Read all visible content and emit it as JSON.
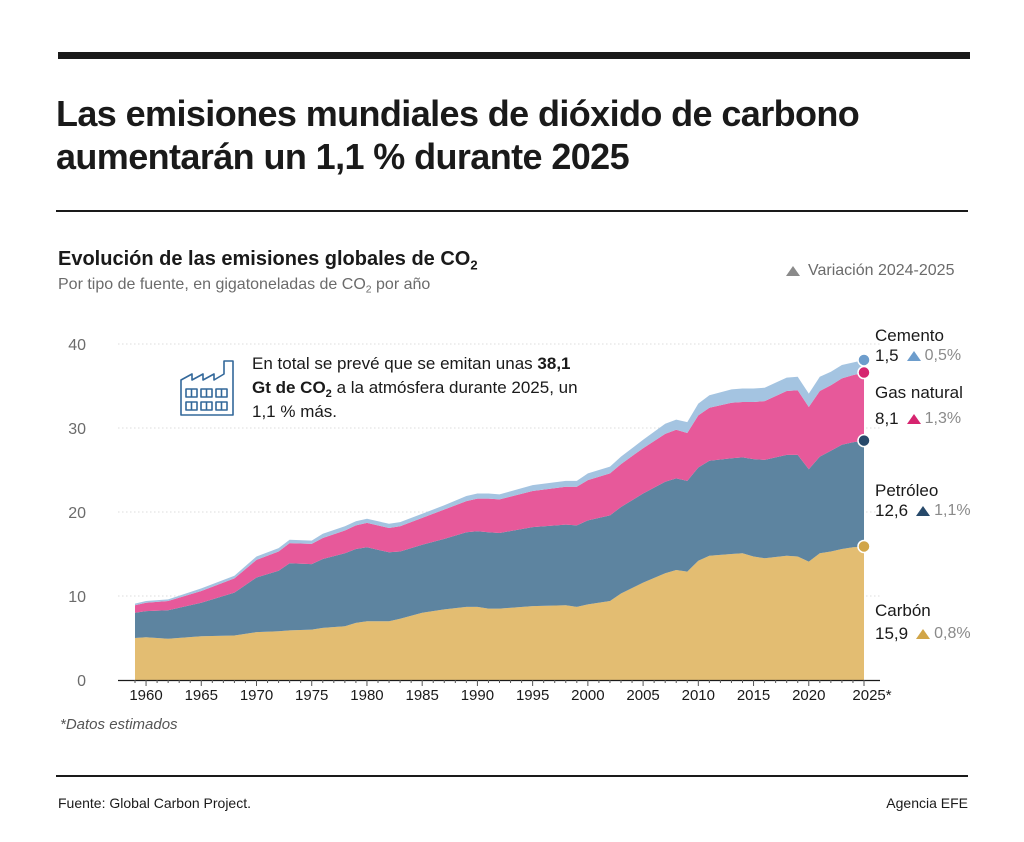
{
  "header": {
    "headline": "Las emisiones mundiales de dióxido de carbono aumentarán un 1,1 % durante 2025"
  },
  "chart_data": {
    "type": "area",
    "title": "Evolución de las emisiones globales de CO2",
    "subtitle": "Por tipo de fuente, en gigatoneladas de CO2 por año",
    "legend": "Variación 2024-2025",
    "legend_position": "top-right",
    "xlabel": "",
    "ylabel": "",
    "ylim": [
      0,
      40
    ],
    "xlim": [
      1959,
      2025
    ],
    "y_ticks": [
      "0",
      "10",
      "20",
      "30",
      "40"
    ],
    "x_ticks": [
      "1960",
      "1965",
      "1970",
      "1975",
      "1980",
      "1985",
      "1990",
      "1995",
      "2000",
      "2005",
      "2010",
      "2015",
      "2020",
      "2025*"
    ],
    "x_tick_values": [
      1960,
      1965,
      1970,
      1975,
      1980,
      1985,
      1990,
      1995,
      2000,
      2005,
      2010,
      2015,
      2020,
      2025
    ],
    "grid": true,
    "stacked": true,
    "x": [
      1959,
      1960,
      1962,
      1965,
      1968,
      1970,
      1972,
      1973,
      1975,
      1976,
      1978,
      1979,
      1980,
      1982,
      1983,
      1985,
      1987,
      1989,
      1990,
      1991,
      1992,
      1995,
      1998,
      1999,
      2000,
      2002,
      2003,
      2005,
      2007,
      2008,
      2009,
      2010,
      2011,
      2013,
      2014,
      2015,
      2016,
      2018,
      2019,
      2020,
      2021,
      2022,
      2023,
      2024,
      2025
    ],
    "series": [
      {
        "name": "Carbón",
        "color": "#e3bd72",
        "values": [
          5.0,
          5.1,
          4.9,
          5.2,
          5.3,
          5.7,
          5.8,
          5.9,
          6.0,
          6.2,
          6.4,
          6.8,
          7.0,
          7.0,
          7.3,
          8.0,
          8.4,
          8.7,
          8.7,
          8.5,
          8.5,
          8.8,
          8.9,
          8.7,
          9.0,
          9.4,
          10.3,
          11.6,
          12.7,
          13.1,
          12.9,
          14.2,
          14.8,
          15.0,
          15.1,
          14.7,
          14.5,
          14.8,
          14.7,
          14.1,
          15.1,
          15.3,
          15.6,
          15.8,
          15.9
        ]
      },
      {
        "name": "Petróleo",
        "color": "#5d84a0",
        "values": [
          3.0,
          3.1,
          3.4,
          4.0,
          5.1,
          6.5,
          7.2,
          8.0,
          7.8,
          8.2,
          8.7,
          8.8,
          8.8,
          8.2,
          8.0,
          8.1,
          8.4,
          8.9,
          9.0,
          9.1,
          9.0,
          9.4,
          9.6,
          9.7,
          10.0,
          10.2,
          10.3,
          10.6,
          10.9,
          10.9,
          10.8,
          11.1,
          11.3,
          11.4,
          11.4,
          11.6,
          11.7,
          12.0,
          12.1,
          11.0,
          11.5,
          12.0,
          12.4,
          12.5,
          12.6
        ]
      },
      {
        "name": "Gas natural",
        "color": "#e7599a",
        "values": [
          0.9,
          1.0,
          1.1,
          1.4,
          1.7,
          2.1,
          2.3,
          2.4,
          2.4,
          2.5,
          2.7,
          2.8,
          2.9,
          2.9,
          3.0,
          3.2,
          3.5,
          3.7,
          3.9,
          4.0,
          4.0,
          4.3,
          4.5,
          4.6,
          4.8,
          5.0,
          5.1,
          5.4,
          5.7,
          5.8,
          5.7,
          6.2,
          6.3,
          6.6,
          6.6,
          6.8,
          7.0,
          7.6,
          7.7,
          7.4,
          7.8,
          7.8,
          7.9,
          8.0,
          8.1
        ]
      },
      {
        "name": "Cemento",
        "color": "#a4c4e1",
        "values": [
          0.2,
          0.2,
          0.2,
          0.3,
          0.3,
          0.4,
          0.4,
          0.4,
          0.4,
          0.5,
          0.5,
          0.5,
          0.5,
          0.5,
          0.5,
          0.5,
          0.5,
          0.6,
          0.6,
          0.6,
          0.6,
          0.7,
          0.7,
          0.7,
          0.8,
          0.8,
          0.9,
          1.0,
          1.2,
          1.2,
          1.3,
          1.4,
          1.5,
          1.6,
          1.6,
          1.6,
          1.6,
          1.6,
          1.6,
          1.6,
          1.7,
          1.6,
          1.6,
          1.5,
          1.5
        ]
      }
    ],
    "end_labels": [
      {
        "name": "Cemento",
        "value": "1,5",
        "change": "0,5%",
        "color": "#6d9dcc"
      },
      {
        "name": "Gas natural",
        "value": "8,1",
        "change": "1,3%",
        "color": "#d6246f"
      },
      {
        "name": "Petróleo",
        "value": "12,6",
        "change": "1,1%",
        "color": "#27496a"
      },
      {
        "name": "Carbón",
        "value": "15,9",
        "change": "0,8%",
        "color": "#d1a548"
      }
    ],
    "annotation": {
      "before": "En total se prevé que se emitan unas",
      "bold_text": "38,1 Gt de CO",
      "bold_sub": "2",
      "after": "a la atmósfera durante 2025, un 1,1 % más."
    },
    "footnote": "*Datos estimados"
  },
  "text": {
    "title_main": "Evolución de las emisiones globales de CO",
    "title_sub": "2",
    "subtitle_a": "Por tipo de fuente, en gigatoneladas de CO",
    "subtitle_sub": "2",
    "subtitle_b": "por año"
  },
  "footer": {
    "source": "Fuente: Global Carbon Project.",
    "agency": "Agencia EFE"
  }
}
